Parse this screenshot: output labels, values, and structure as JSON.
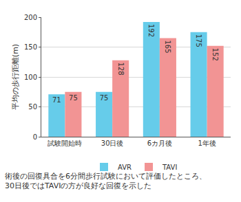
{
  "chart_data": {
    "type": "bar",
    "ylabel": "平均の歩行距離(m)",
    "categories": [
      "試験開始時",
      "30日後",
      "6カ月後",
      "1年後"
    ],
    "series": [
      {
        "name": "AVR",
        "color": "#66ccea",
        "values": [
          71,
          75,
          192,
          175
        ]
      },
      {
        "name": "TAVI",
        "color": "#f29494",
        "values": [
          75,
          128,
          165,
          152
        ]
      }
    ],
    "ylim": [
      0,
      200
    ],
    "yticks": [
      0,
      50,
      100,
      150,
      200
    ],
    "grid": true,
    "data_labels": true,
    "legend": "bottom",
    "annotations": [
      "術後の回復具合を6分間歩行試験において評価したところ、\n30日後ではTAVIの方が良好な回復を示した"
    ]
  }
}
